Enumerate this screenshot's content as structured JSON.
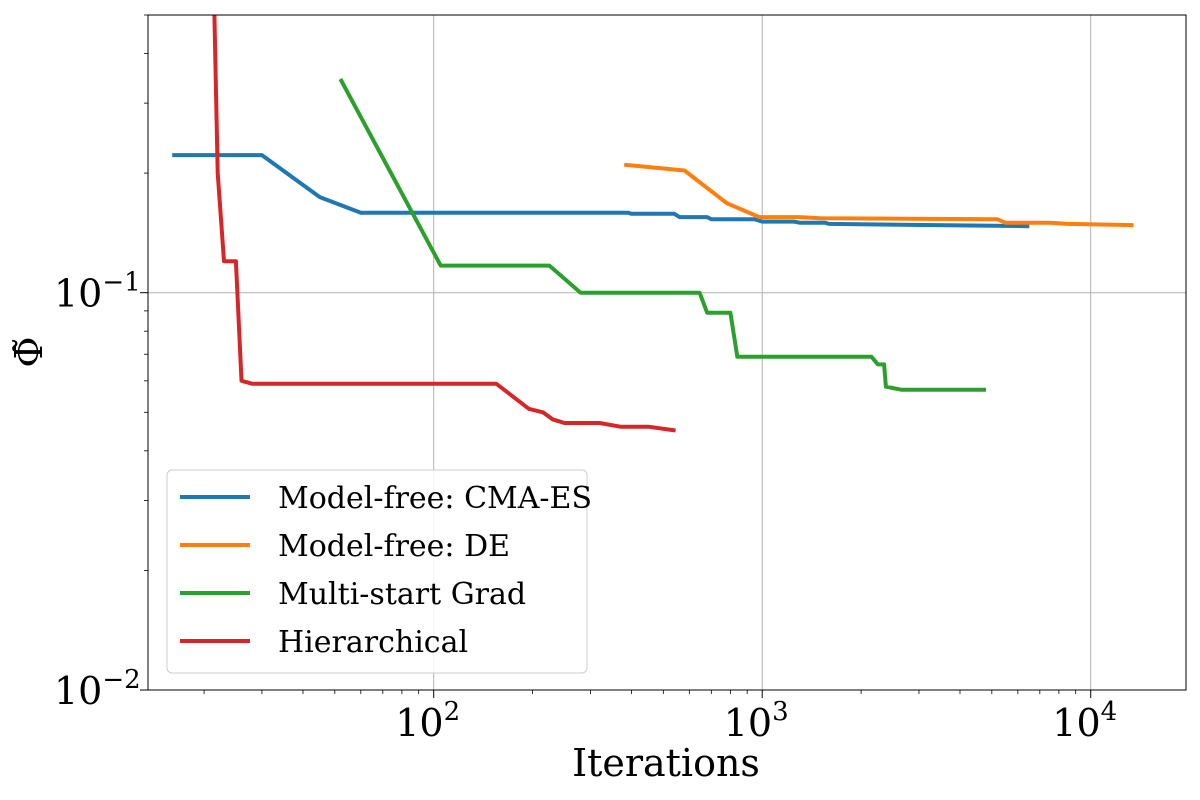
{
  "chart_data": {
    "type": "line",
    "xlabel": "Iterations",
    "ylabel": "Φ̃",
    "xscale": "log",
    "yscale": "log",
    "xlim": [
      13.5,
      19500
    ],
    "ylim": [
      0.01,
      0.5
    ],
    "grid": true,
    "legend_position": "lower-left",
    "xticks": [
      {
        "value": 100,
        "base": "10",
        "exp": "2"
      },
      {
        "value": 1000,
        "base": "10",
        "exp": "3"
      },
      {
        "value": 10000,
        "base": "10",
        "exp": "4"
      }
    ],
    "yticks": [
      {
        "value": 0.01,
        "base": "10",
        "exp": "−2"
      },
      {
        "value": 0.1,
        "base": "10",
        "exp": "−1"
      }
    ],
    "series": [
      {
        "name": "Model-free: CMA-ES",
        "color": "#1f77b4",
        "x": [
          16,
          30,
          45,
          60,
          390,
          400,
          540,
          560,
          680,
          700,
          950,
          1000,
          1250,
          1300,
          1550,
          1600,
          6500
        ],
        "y": [
          0.222,
          0.222,
          0.174,
          0.159,
          0.159,
          0.158,
          0.158,
          0.155,
          0.155,
          0.153,
          0.153,
          0.151,
          0.151,
          0.15,
          0.15,
          0.149,
          0.147
        ]
      },
      {
        "name": "Model-free: DE",
        "color": "#ff7f0e",
        "x": [
          380,
          580,
          780,
          980,
          1300,
          1500,
          5200,
          5500,
          7500,
          8500,
          13500
        ],
        "y": [
          0.21,
          0.203,
          0.168,
          0.155,
          0.155,
          0.154,
          0.153,
          0.15,
          0.15,
          0.149,
          0.148
        ]
      },
      {
        "name": "Multi-start Grad",
        "color": "#2ca02c",
        "x": [
          52,
          105,
          225,
          280,
          645,
          680,
          800,
          840,
          2150,
          2250,
          2350,
          2380,
          2650,
          4800
        ],
        "y": [
          0.345,
          0.117,
          0.117,
          0.1,
          0.1,
          0.089,
          0.089,
          0.069,
          0.069,
          0.066,
          0.066,
          0.058,
          0.057,
          0.057
        ]
      },
      {
        "name": "Hierarchical",
        "color": "#d62728",
        "x": [
          21.5,
          22,
          23,
          25,
          26,
          28,
          155,
          195,
          215,
          230,
          250,
          280,
          320,
          370,
          450,
          545
        ],
        "y": [
          0.5,
          0.2,
          0.12,
          0.12,
          0.06,
          0.059,
          0.059,
          0.051,
          0.05,
          0.048,
          0.047,
          0.047,
          0.047,
          0.046,
          0.046,
          0.045
        ],
        "y_detail": true
      }
    ]
  }
}
